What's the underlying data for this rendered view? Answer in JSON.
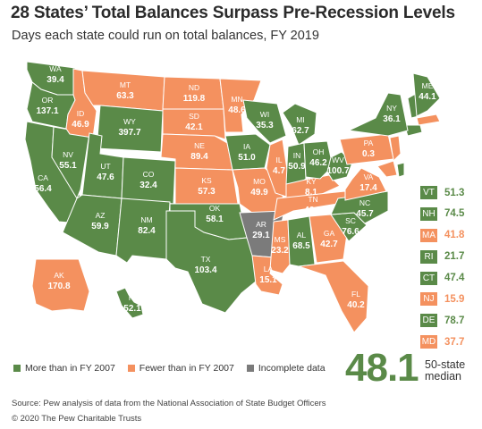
{
  "title": "28 States’ Total Balances Surpass Pre-Recession Levels",
  "subtitle": "Days each state could run on total balances, FY 2019",
  "colors": {
    "more": "#5a8a48",
    "fewer": "#f4915f",
    "incomplete": "#7b7b7b",
    "border": "#ffffff"
  },
  "states": [
    {
      "abbr": "WA",
      "value": "39.4",
      "status": "more"
    },
    {
      "abbr": "OR",
      "value": "137.1",
      "status": "more"
    },
    {
      "abbr": "CA",
      "value": "56.4",
      "status": "more"
    },
    {
      "abbr": "NV",
      "value": "55.1",
      "status": "more"
    },
    {
      "abbr": "ID",
      "value": "46.9",
      "status": "fewer"
    },
    {
      "abbr": "MT",
      "value": "63.3",
      "status": "fewer"
    },
    {
      "abbr": "WY",
      "value": "397.7",
      "status": "more"
    },
    {
      "abbr": "UT",
      "value": "47.6",
      "status": "more"
    },
    {
      "abbr": "AZ",
      "value": "59.9",
      "status": "more"
    },
    {
      "abbr": "CO",
      "value": "32.4",
      "status": "more"
    },
    {
      "abbr": "NM",
      "value": "82.4",
      "status": "more"
    },
    {
      "abbr": "ND",
      "value": "119.8",
      "status": "fewer"
    },
    {
      "abbr": "SD",
      "value": "42.1",
      "status": "fewer"
    },
    {
      "abbr": "NE",
      "value": "89.4",
      "status": "fewer"
    },
    {
      "abbr": "KS",
      "value": "57.3",
      "status": "fewer"
    },
    {
      "abbr": "OK",
      "value": "58.1",
      "status": "more"
    },
    {
      "abbr": "TX",
      "value": "103.4",
      "status": "more"
    },
    {
      "abbr": "MN",
      "value": "48.6",
      "status": "fewer"
    },
    {
      "abbr": "IA",
      "value": "51.0",
      "status": "more"
    },
    {
      "abbr": "MO",
      "value": "49.9",
      "status": "fewer"
    },
    {
      "abbr": "AR",
      "value": "29.1",
      "status": "incomplete"
    },
    {
      "abbr": "LA",
      "value": "15.1",
      "status": "fewer"
    },
    {
      "abbr": "WI",
      "value": "35.3",
      "status": "more"
    },
    {
      "abbr": "IL",
      "value": "4.7",
      "status": "fewer"
    },
    {
      "abbr": "MS",
      "value": "23.2",
      "status": "fewer"
    },
    {
      "abbr": "MI",
      "value": "62.7",
      "status": "more"
    },
    {
      "abbr": "IN",
      "value": "50.9",
      "status": "more"
    },
    {
      "abbr": "KY",
      "value": "8.1",
      "status": "fewer"
    },
    {
      "abbr": "TN",
      "value": "42.5",
      "status": "fewer"
    },
    {
      "abbr": "AL",
      "value": "68.5",
      "status": "more"
    },
    {
      "abbr": "OH",
      "value": "46.2",
      "status": "more"
    },
    {
      "abbr": "WV",
      "value": "100.7",
      "status": "more"
    },
    {
      "abbr": "GA",
      "value": "42.7",
      "status": "fewer"
    },
    {
      "abbr": "FL",
      "value": "40.2",
      "status": "fewer"
    },
    {
      "abbr": "SC",
      "value": "76.6",
      "status": "more"
    },
    {
      "abbr": "NC",
      "value": "45.7",
      "status": "more"
    },
    {
      "abbr": "VA",
      "value": "17.4",
      "status": "fewer"
    },
    {
      "abbr": "PA",
      "value": "0.3",
      "status": "fewer"
    },
    {
      "abbr": "NY",
      "value": "36.1",
      "status": "more"
    },
    {
      "abbr": "ME",
      "value": "44.1",
      "status": "more"
    },
    {
      "abbr": "AK",
      "value": "170.8",
      "status": "fewer"
    },
    {
      "abbr": "HI",
      "value": "52.1",
      "status": "more"
    }
  ],
  "small_states": [
    {
      "abbr": "VT",
      "value": "51.3",
      "status": "more"
    },
    {
      "abbr": "NH",
      "value": "74.5",
      "status": "more"
    },
    {
      "abbr": "MA",
      "value": "41.8",
      "status": "fewer"
    },
    {
      "abbr": "RI",
      "value": "21.7",
      "status": "more"
    },
    {
      "abbr": "CT",
      "value": "47.4",
      "status": "more"
    },
    {
      "abbr": "NJ",
      "value": "15.9",
      "status": "fewer"
    },
    {
      "abbr": "DE",
      "value": "78.7",
      "status": "more"
    },
    {
      "abbr": "MD",
      "value": "37.7",
      "status": "fewer"
    }
  ],
  "legend": {
    "more": "More than in FY 2007",
    "fewer": "Fewer than in FY 2007",
    "incomplete": "Incomplete data"
  },
  "median": {
    "value": "48.1",
    "label_line1": "50-state",
    "label_line2": "median"
  },
  "source": "Source: Pew analysis of data from the National Association of State Budget Officers",
  "copyright": "© 2020 The Pew Charitable Trusts"
}
